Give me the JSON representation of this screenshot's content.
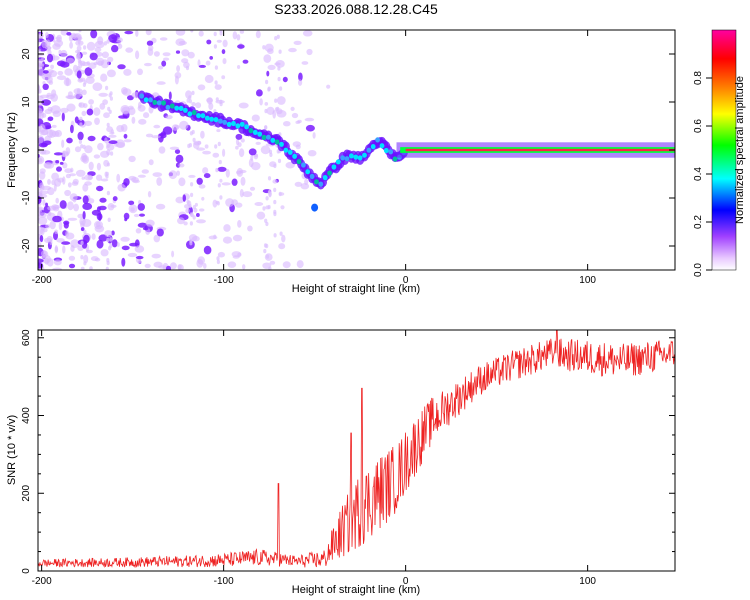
{
  "title": "S233.2026.088.12.28.C45",
  "chart_data": [
    {
      "type": "heatmap",
      "name": "spectrogram",
      "xlabel": "Height of straight line (km)",
      "ylabel": "Frequency (Hz)",
      "xlim": [
        -202,
        148
      ],
      "ylim": [
        -25,
        25
      ],
      "xticks": [
        -200,
        -100,
        0,
        100
      ],
      "yticks": [
        -20,
        -10,
        0,
        10,
        20
      ],
      "colorbar": {
        "label": "Normalized spectral amplitude",
        "range": [
          0.0,
          1.0
        ],
        "ticks": [
          "0.0",
          "0.2",
          "0.4",
          "0.6",
          "0.8"
        ],
        "colors": [
          "#ffffff",
          "#e8c8ff",
          "#a040ff",
          "#0000ff",
          "#00ffff",
          "#00ff00",
          "#ffff00",
          "#ff8000",
          "#ff0000",
          "#ff00a0"
        ]
      },
      "ridge": {
        "height_km": [
          -145,
          -130,
          -120,
          -110,
          -100,
          -90,
          -80,
          -70,
          -60,
          -50,
          -47,
          -40,
          -35,
          -30,
          -25,
          -20,
          -15,
          -10,
          -5,
          0,
          20,
          50,
          100,
          148
        ],
        "frequency_hz": [
          11,
          9,
          8,
          7,
          6,
          5,
          3,
          2,
          -2,
          -6,
          -7,
          -4,
          -2,
          -1,
          -2,
          0,
          2,
          0,
          -2,
          0,
          0,
          0,
          0,
          0
        ]
      },
      "carrier_frequency_hz": 0
    },
    {
      "type": "line",
      "name": "snr",
      "xlabel": "Height of straight line (km)",
      "ylabel": "SNR (10 * v/v)",
      "xlim": [
        -202,
        148
      ],
      "ylim": [
        0,
        620
      ],
      "xticks": [
        -200,
        -100,
        0,
        100
      ],
      "yticks": [
        0,
        200,
        400,
        600
      ],
      "color": "#ee2222",
      "envelope": {
        "height_km": [
          -202,
          -160,
          -120,
          -100,
          -80,
          -60,
          -45,
          -35,
          -25,
          -15,
          -5,
          5,
          15,
          25,
          40,
          60,
          80,
          100,
          120,
          148
        ],
        "snr_mean": [
          20,
          22,
          25,
          28,
          35,
          25,
          30,
          100,
          160,
          200,
          240,
          320,
          390,
          430,
          490,
          530,
          560,
          550,
          540,
          560
        ],
        "snr_spread": [
          10,
          12,
          15,
          18,
          22,
          15,
          25,
          70,
          100,
          100,
          90,
          80,
          60,
          50,
          40,
          40,
          40,
          45,
          45,
          40
        ]
      },
      "spikes": [
        {
          "height_km": -70,
          "snr": 225
        },
        {
          "height_km": -24,
          "snr": 470
        },
        {
          "height_km": -30,
          "snr": 355
        },
        {
          "height_km": 83,
          "snr": 620
        }
      ]
    }
  ]
}
